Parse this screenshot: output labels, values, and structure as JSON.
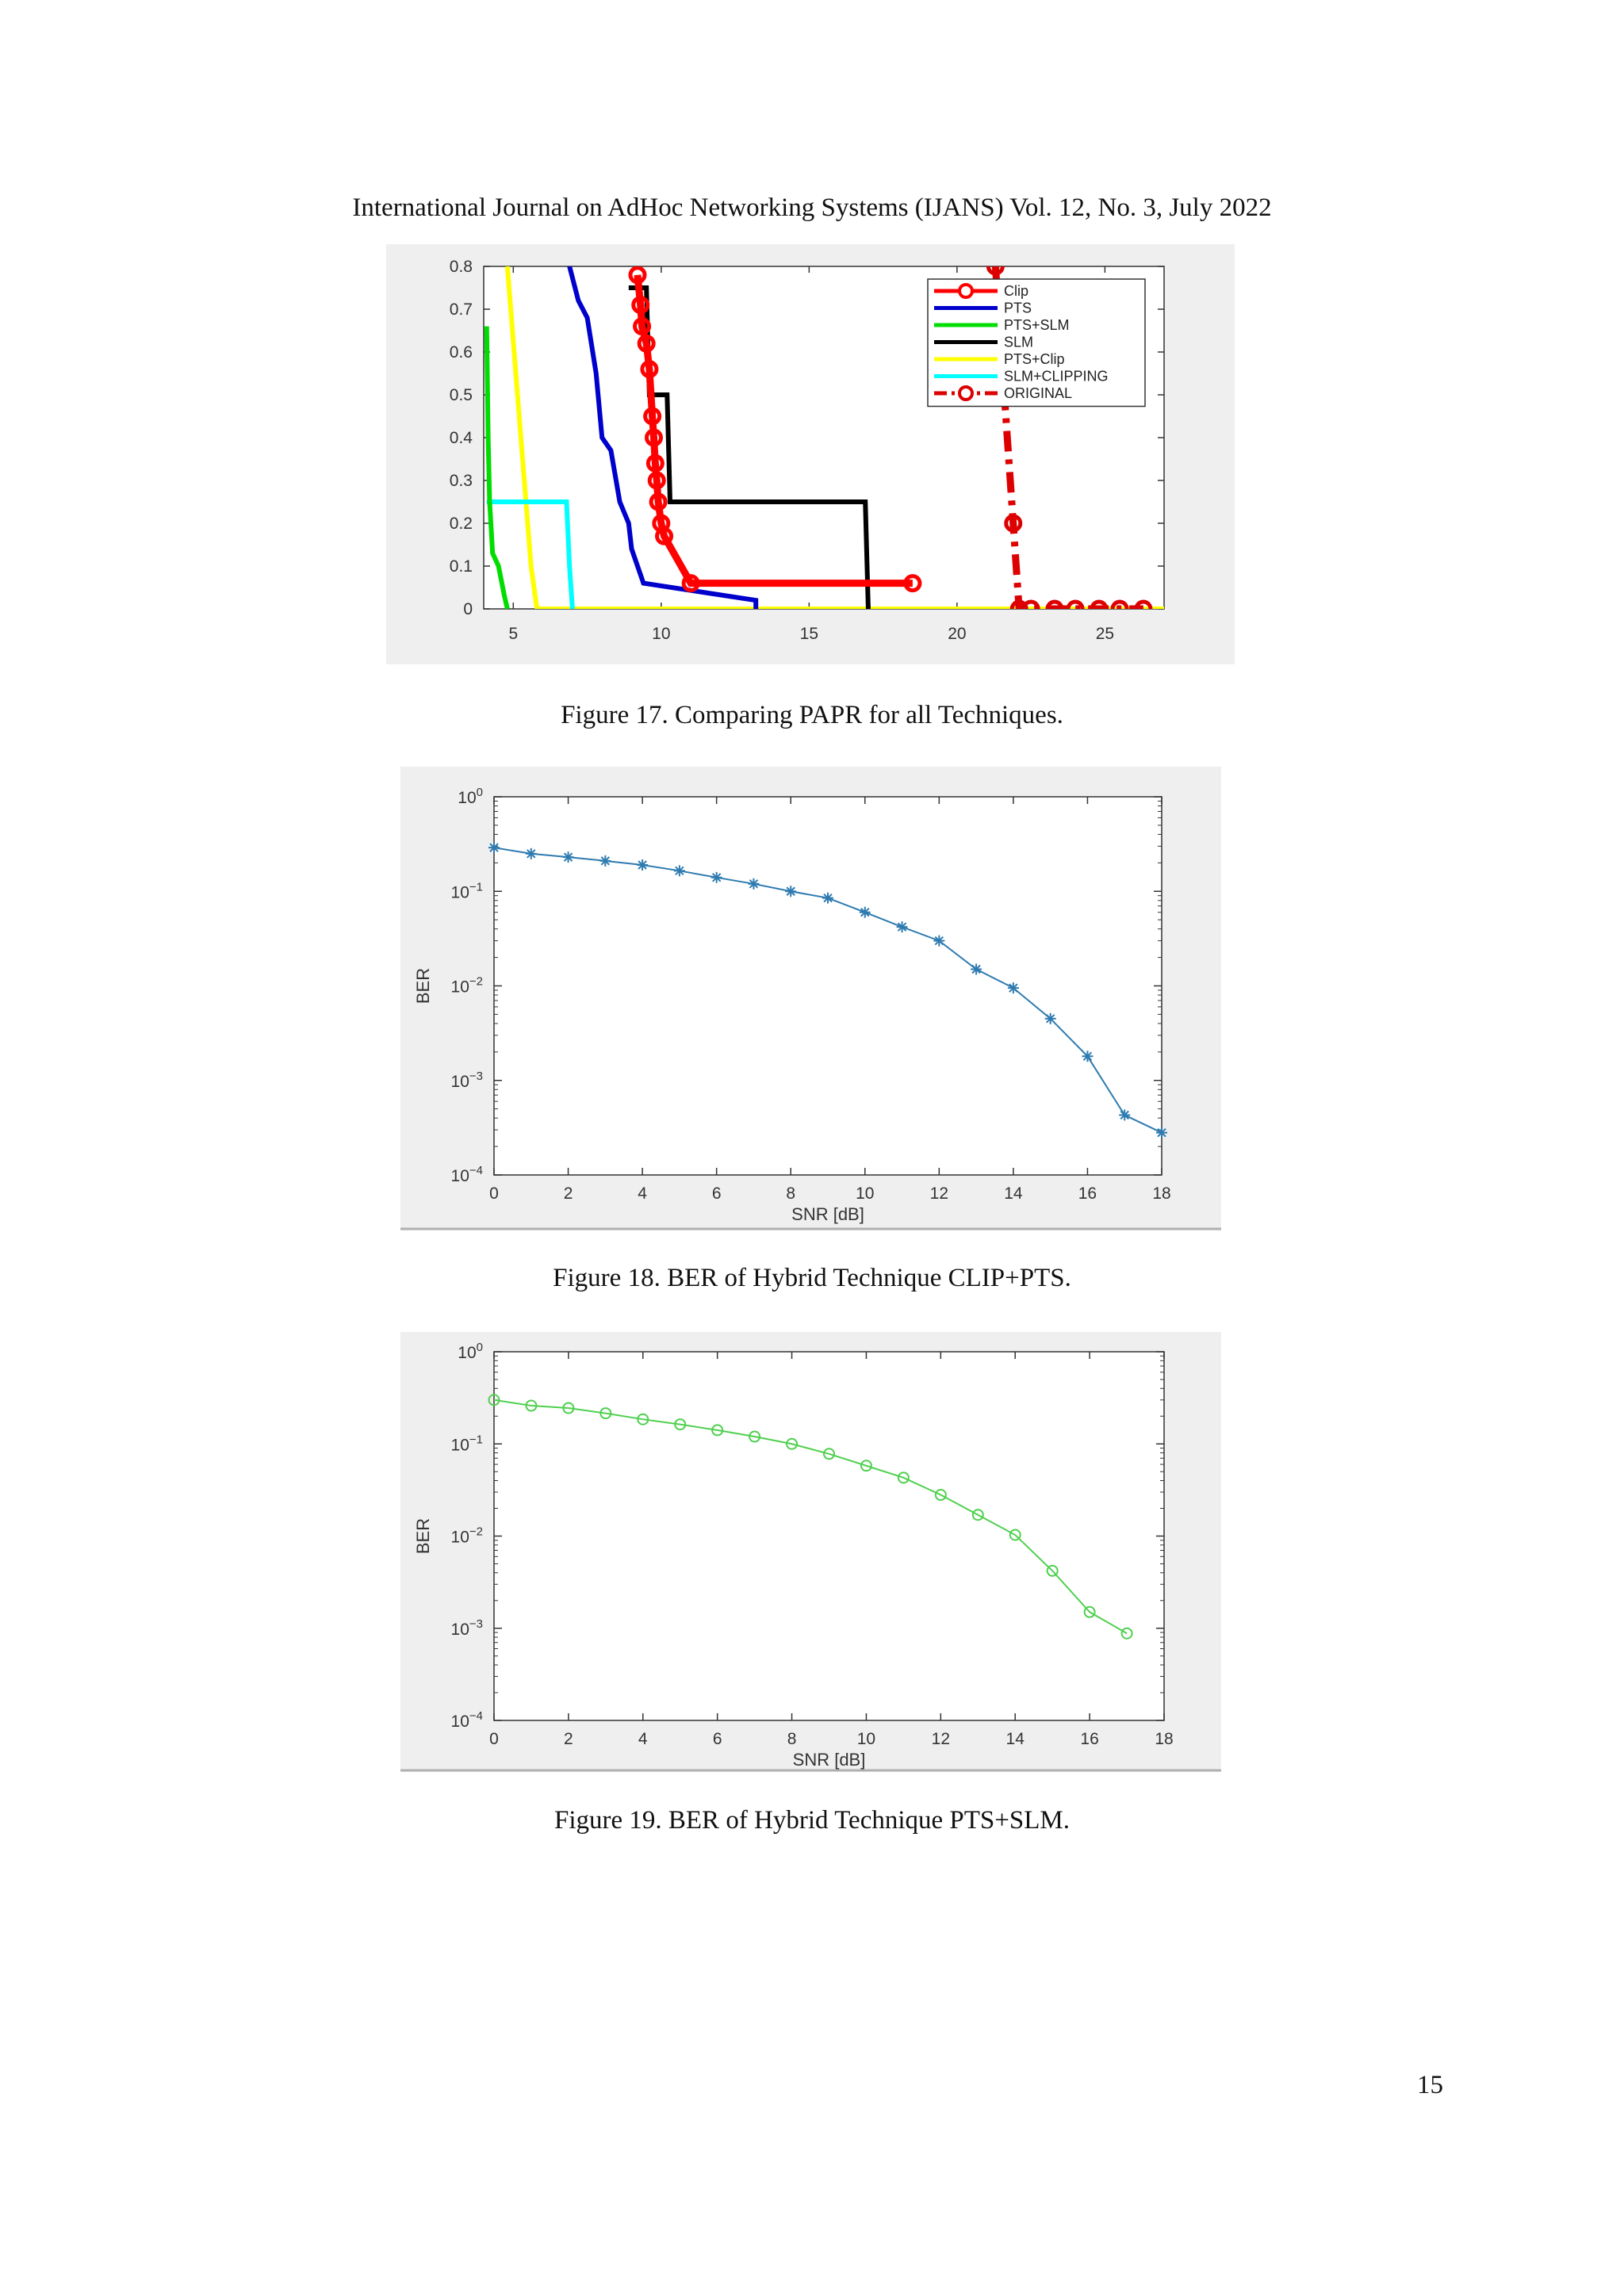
{
  "page": {
    "header": "International Journal on AdHoc Networking Systems (IJANS) Vol. 12, No. 3, July 2022",
    "page_number": "15"
  },
  "figures": [
    {
      "id": "fig17",
      "caption": "Figure 17. Comparing PAPR for all Techniques."
    },
    {
      "id": "fig18",
      "caption": "Figure 18. BER of Hybrid Technique CLIP+PTS."
    },
    {
      "id": "fig19",
      "caption": "Figure 19.  BER of Hybrid Technique PTS+SLM."
    }
  ],
  "chart_data": [
    {
      "type": "line",
      "title": "",
      "xlabel": "",
      "ylabel": "",
      "xlim": [
        4,
        27
      ],
      "ylim": [
        0,
        0.8
      ],
      "xticks": [
        5,
        10,
        15,
        20,
        25
      ],
      "yticks": [
        0,
        0.1,
        0.2,
        0.3,
        0.4,
        0.5,
        0.6,
        0.7,
        0.8
      ],
      "grid": false,
      "legend_position": "top-right",
      "series": [
        {
          "name": "Clip",
          "color": "#ff0000",
          "style": "solid-marker-o",
          "x": [
            9.2,
            9.3,
            9.35,
            9.5,
            9.6,
            9.7,
            9.75,
            9.8,
            9.85,
            9.9,
            10.0,
            10.1,
            11.0,
            18.5
          ],
          "y": [
            0.78,
            0.71,
            0.66,
            0.62,
            0.56,
            0.45,
            0.4,
            0.34,
            0.3,
            0.25,
            0.2,
            0.17,
            0.06,
            0.06
          ]
        },
        {
          "name": "PTS",
          "color": "#0000cc",
          "style": "solid",
          "x": [
            6.9,
            7.2,
            7.5,
            7.8,
            8.0,
            8.3,
            8.6,
            8.9,
            9.0,
            9.4,
            13.2,
            13.2
          ],
          "y": [
            0.8,
            0.72,
            0.68,
            0.55,
            0.4,
            0.37,
            0.25,
            0.2,
            0.14,
            0.06,
            0.02,
            0.0
          ]
        },
        {
          "name": "PTS+SLM",
          "color": "#00dd00",
          "style": "solid",
          "x": [
            4.1,
            4.15,
            4.2,
            4.3,
            4.5,
            4.7,
            4.8
          ],
          "y": [
            0.66,
            0.4,
            0.25,
            0.13,
            0.1,
            0.03,
            0.0
          ]
        },
        {
          "name": "SLM",
          "color": "#000000",
          "style": "solid",
          "x": [
            8.9,
            9.5,
            9.6,
            10.2,
            10.3,
            16.9,
            17.0
          ],
          "y": [
            0.75,
            0.75,
            0.5,
            0.5,
            0.25,
            0.25,
            0.0
          ]
        },
        {
          "name": "PTS+Clip",
          "color": "#ffff00",
          "style": "solid",
          "x": [
            4.8,
            5.6,
            5.8,
            27
          ],
          "y": [
            0.8,
            0.1,
            0.0,
            0.0
          ]
        },
        {
          "name": "SLM+CLIPPING",
          "color": "#00ffff",
          "style": "solid",
          "x": [
            4.1,
            6.8,
            6.9,
            7.0
          ],
          "y": [
            0.25,
            0.25,
            0.1,
            0.0
          ]
        },
        {
          "name": "ORIGINAL",
          "color": "#dd0000",
          "style": "dashdot-marker-o",
          "x": [
            21.3,
            21.6,
            21.9,
            22.1,
            22.5,
            23.3,
            24.0,
            24.8,
            25.5,
            26.3
          ],
          "y": [
            0.8,
            0.5,
            0.2,
            0.0,
            0.0,
            0.0,
            0.0,
            0.0,
            0.0,
            0.0
          ]
        }
      ]
    },
    {
      "type": "line",
      "title": "",
      "xlabel": "SNR [dB]",
      "ylabel": "BER",
      "xlim": [
        0,
        18
      ],
      "ylim": [
        0.0001,
        1
      ],
      "yscale": "log",
      "xticks": [
        0,
        2,
        4,
        6,
        8,
        10,
        12,
        14,
        16,
        18
      ],
      "yticks": [
        "10^0",
        "10^-1",
        "10^-2",
        "10^-3",
        "10^-4"
      ],
      "grid": false,
      "series": [
        {
          "color": "#2e7bb0",
          "marker": "*",
          "x": [
            0,
            1,
            2,
            3,
            4,
            5,
            6,
            7,
            8,
            9,
            10,
            11,
            12,
            13,
            14,
            15,
            16,
            17,
            18
          ],
          "y": [
            0.29,
            0.25,
            0.23,
            0.21,
            0.19,
            0.165,
            0.14,
            0.12,
            0.1,
            0.085,
            0.06,
            0.042,
            0.03,
            0.015,
            0.0095,
            0.0045,
            0.0018,
            0.00043,
            0.00028
          ]
        }
      ]
    },
    {
      "type": "line",
      "title": "",
      "xlabel": "SNR [dB]",
      "ylabel": "BER",
      "xlim": [
        0,
        18
      ],
      "ylim": [
        0.0001,
        1
      ],
      "yscale": "log",
      "xticks": [
        0,
        2,
        4,
        6,
        8,
        10,
        12,
        14,
        16,
        18
      ],
      "yticks": [
        "10^0",
        "10^-1",
        "10^-2",
        "10^-3",
        "10^-4"
      ],
      "grid": false,
      "series": [
        {
          "color": "#4fd04f",
          "marker": "o",
          "x": [
            0,
            1,
            2,
            3,
            4,
            5,
            6,
            7,
            8,
            9,
            10,
            11,
            12,
            13,
            14,
            15,
            16,
            17
          ],
          "y": [
            0.3,
            0.26,
            0.245,
            0.215,
            0.185,
            0.163,
            0.141,
            0.12,
            0.1,
            0.078,
            0.058,
            0.043,
            0.028,
            0.017,
            0.0103,
            0.0042,
            0.0015,
            0.00088
          ]
        }
      ]
    }
  ]
}
